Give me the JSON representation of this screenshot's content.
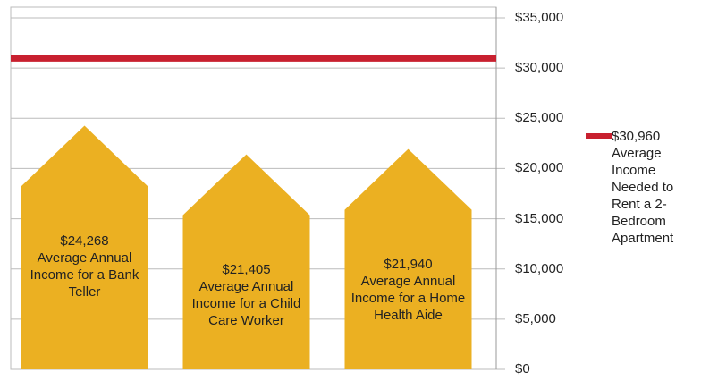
{
  "chart_data": {
    "type": "bar",
    "categories": [
      "Average Annual Income for a Bank Teller",
      "Average Annual Income for a Child Care Worker",
      "Average Annual Income for a Home Health Aide"
    ],
    "values": [
      24268,
      21405,
      21940
    ],
    "value_labels": [
      "$24,268",
      "$21,405",
      "$21,940"
    ],
    "color": "#ebb022",
    "ylim": [
      0,
      35000
    ],
    "yticks": [
      {
        "value": 0,
        "label": "$0"
      },
      {
        "value": 5000,
        "label": "$5,000"
      },
      {
        "value": 10000,
        "label": "$10,000"
      },
      {
        "value": 15000,
        "label": "$15,000"
      },
      {
        "value": 20000,
        "label": "$20,000"
      },
      {
        "value": 25000,
        "label": "$25,000"
      },
      {
        "value": 30000,
        "label": "$30,000"
      },
      {
        "value": 35000,
        "label": "$35,000"
      }
    ],
    "grid": true,
    "reference_line": {
      "value": 30960,
      "value_label": "$30,960",
      "label": "Average Income Needed to Rent a 2-Bedroom Apartment",
      "color": "#c8202f"
    }
  }
}
